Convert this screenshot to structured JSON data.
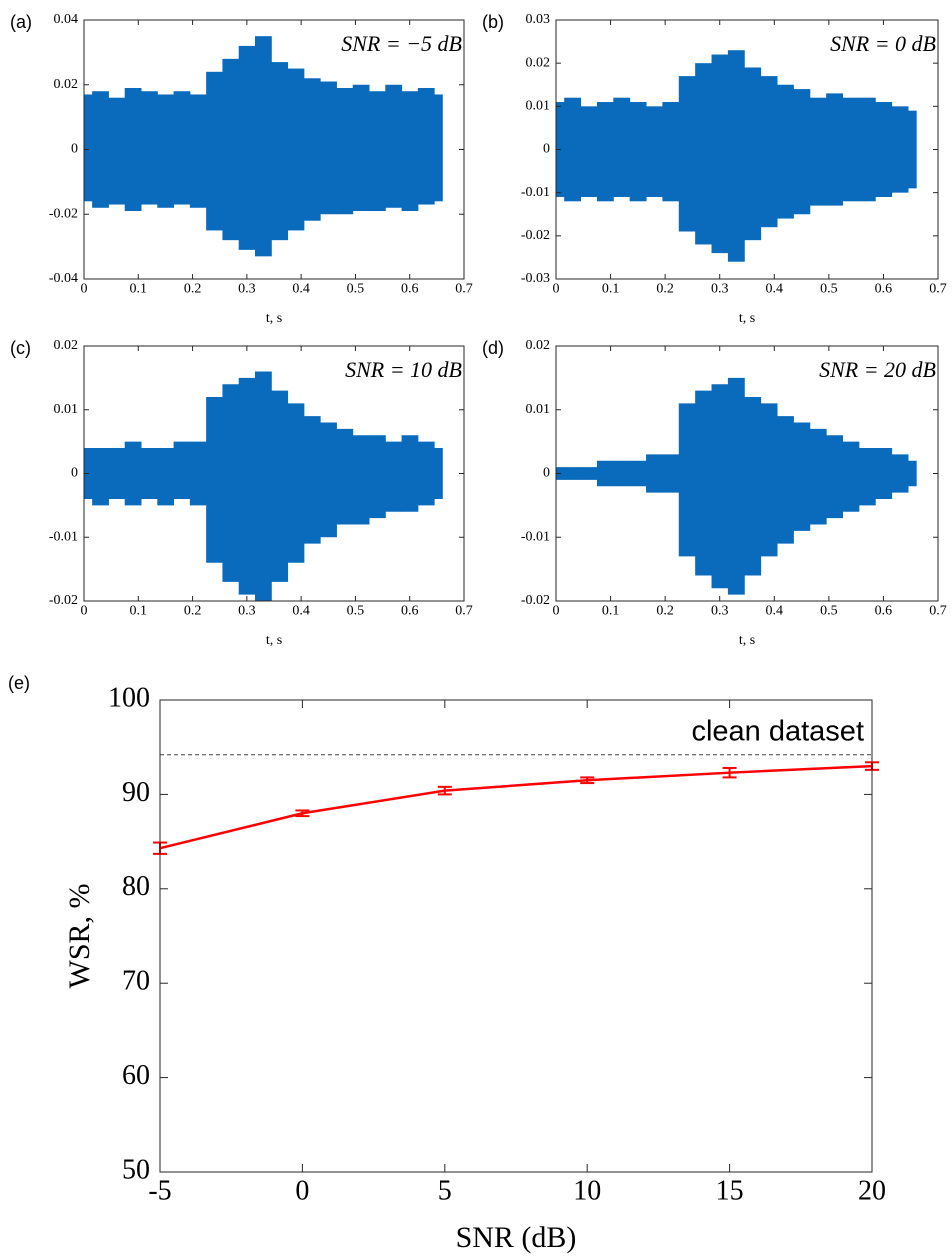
{
  "chart_data": [
    {
      "type": "area",
      "panel_label": "(a)",
      "annotation": "SNR = −5 dB",
      "xlabel": "t, s",
      "color": "#0a6bbd",
      "x": [
        0,
        0.03,
        0.06,
        0.09,
        0.12,
        0.15,
        0.18,
        0.21,
        0.24,
        0.27,
        0.3,
        0.33,
        0.36,
        0.39,
        0.42,
        0.45,
        0.48,
        0.51,
        0.54,
        0.57,
        0.6,
        0.63,
        0.66
      ],
      "max": [
        0.017,
        0.018,
        0.016,
        0.019,
        0.018,
        0.017,
        0.018,
        0.017,
        0.024,
        0.028,
        0.032,
        0.035,
        0.027,
        0.025,
        0.022,
        0.021,
        0.019,
        0.02,
        0.018,
        0.02,
        0.018,
        0.019,
        0.017
      ],
      "min": [
        -0.016,
        -0.018,
        -0.017,
        -0.019,
        -0.017,
        -0.018,
        -0.017,
        -0.018,
        -0.025,
        -0.028,
        -0.031,
        -0.033,
        -0.028,
        -0.025,
        -0.022,
        -0.02,
        -0.02,
        -0.019,
        -0.019,
        -0.018,
        -0.019,
        -0.017,
        -0.016
      ],
      "xlim": [
        0,
        0.7
      ],
      "xticks": [
        0,
        0.1,
        0.2,
        0.3,
        0.4,
        0.5,
        0.6,
        0.7
      ],
      "ylim": [
        -0.04,
        0.04
      ],
      "yticks": [
        -0.04,
        -0.02,
        0,
        0.02,
        0.04
      ]
    },
    {
      "type": "area",
      "panel_label": "(b)",
      "annotation": "SNR = 0 dB",
      "xlabel": "t, s",
      "color": "#0a6bbd",
      "x": [
        0,
        0.03,
        0.06,
        0.09,
        0.12,
        0.15,
        0.18,
        0.21,
        0.24,
        0.27,
        0.3,
        0.33,
        0.36,
        0.39,
        0.42,
        0.45,
        0.48,
        0.51,
        0.54,
        0.57,
        0.6,
        0.63,
        0.66
      ],
      "max": [
        0.011,
        0.012,
        0.01,
        0.011,
        0.012,
        0.011,
        0.01,
        0.011,
        0.017,
        0.02,
        0.022,
        0.023,
        0.019,
        0.017,
        0.015,
        0.014,
        0.012,
        0.013,
        0.012,
        0.012,
        0.011,
        0.01,
        0.009
      ],
      "min": [
        -0.011,
        -0.012,
        -0.011,
        -0.012,
        -0.011,
        -0.012,
        -0.011,
        -0.012,
        -0.019,
        -0.022,
        -0.024,
        -0.026,
        -0.021,
        -0.018,
        -0.016,
        -0.015,
        -0.013,
        -0.013,
        -0.012,
        -0.012,
        -0.011,
        -0.01,
        -0.009
      ],
      "xlim": [
        0,
        0.7
      ],
      "xticks": [
        0,
        0.1,
        0.2,
        0.3,
        0.4,
        0.5,
        0.6,
        0.7
      ],
      "ylim": [
        -0.03,
        0.03
      ],
      "yticks": [
        -0.03,
        -0.02,
        -0.01,
        0,
        0.01,
        0.02,
        0.03
      ]
    },
    {
      "type": "area",
      "panel_label": "(c)",
      "annotation": "SNR = 10 dB",
      "xlabel": "t, s",
      "color": "#0a6bbd",
      "x": [
        0,
        0.03,
        0.06,
        0.09,
        0.12,
        0.15,
        0.18,
        0.21,
        0.24,
        0.27,
        0.3,
        0.33,
        0.36,
        0.39,
        0.42,
        0.45,
        0.48,
        0.51,
        0.54,
        0.57,
        0.6,
        0.63,
        0.66
      ],
      "max": [
        0.004,
        0.004,
        0.004,
        0.005,
        0.004,
        0.004,
        0.005,
        0.005,
        0.012,
        0.014,
        0.015,
        0.016,
        0.013,
        0.011,
        0.009,
        0.008,
        0.007,
        0.006,
        0.006,
        0.005,
        0.006,
        0.005,
        0.004
      ],
      "min": [
        -0.004,
        -0.005,
        -0.004,
        -0.005,
        -0.004,
        -0.005,
        -0.004,
        -0.005,
        -0.014,
        -0.017,
        -0.019,
        -0.02,
        -0.017,
        -0.014,
        -0.011,
        -0.01,
        -0.008,
        -0.008,
        -0.007,
        -0.006,
        -0.006,
        -0.005,
        -0.004
      ],
      "xlim": [
        0,
        0.7
      ],
      "xticks": [
        0,
        0.1,
        0.2,
        0.3,
        0.4,
        0.5,
        0.6,
        0.7
      ],
      "ylim": [
        -0.02,
        0.02
      ],
      "yticks": [
        -0.02,
        -0.01,
        0,
        0.01,
        0.02
      ]
    },
    {
      "type": "area",
      "panel_label": "(d)",
      "annotation": "SNR = 20 dB",
      "xlabel": "t, s",
      "color": "#0a6bbd",
      "x": [
        0,
        0.03,
        0.06,
        0.09,
        0.12,
        0.15,
        0.18,
        0.21,
        0.24,
        0.27,
        0.3,
        0.33,
        0.36,
        0.39,
        0.42,
        0.45,
        0.48,
        0.51,
        0.54,
        0.57,
        0.6,
        0.63,
        0.66
      ],
      "max": [
        0.001,
        0.001,
        0.001,
        0.002,
        0.002,
        0.002,
        0.003,
        0.003,
        0.011,
        0.013,
        0.014,
        0.015,
        0.012,
        0.011,
        0.009,
        0.008,
        0.007,
        0.006,
        0.005,
        0.004,
        0.004,
        0.003,
        0.002
      ],
      "min": [
        -0.001,
        -0.001,
        -0.001,
        -0.002,
        -0.002,
        -0.002,
        -0.003,
        -0.003,
        -0.013,
        -0.016,
        -0.018,
        -0.019,
        -0.016,
        -0.013,
        -0.011,
        -0.009,
        -0.008,
        -0.007,
        -0.006,
        -0.005,
        -0.004,
        -0.003,
        -0.002
      ],
      "xlim": [
        0,
        0.7
      ],
      "xticks": [
        0,
        0.1,
        0.2,
        0.3,
        0.4,
        0.5,
        0.6,
        0.7
      ],
      "ylim": [
        -0.02,
        0.02
      ],
      "yticks": [
        -0.02,
        -0.01,
        0,
        0.01,
        0.02
      ]
    },
    {
      "type": "line",
      "panel_label": "(e)",
      "xlabel": "SNR (dB)",
      "ylabel": "WSR, %",
      "color": "#ff0000",
      "x": [
        -5,
        0,
        5,
        10,
        15,
        20
      ],
      "values": [
        84.3,
        88.0,
        90.4,
        91.5,
        92.3,
        93.0
      ],
      "errors": [
        0.6,
        0.3,
        0.4,
        0.3,
        0.5,
        0.4
      ],
      "reference": {
        "value": 94.2,
        "label": "clean dataset"
      },
      "xlim": [
        -5,
        20
      ],
      "xticks": [
        -5,
        0,
        5,
        10,
        15,
        20
      ],
      "ylim": [
        50,
        100
      ],
      "yticks": [
        50,
        60,
        70,
        80,
        90,
        100
      ]
    }
  ]
}
